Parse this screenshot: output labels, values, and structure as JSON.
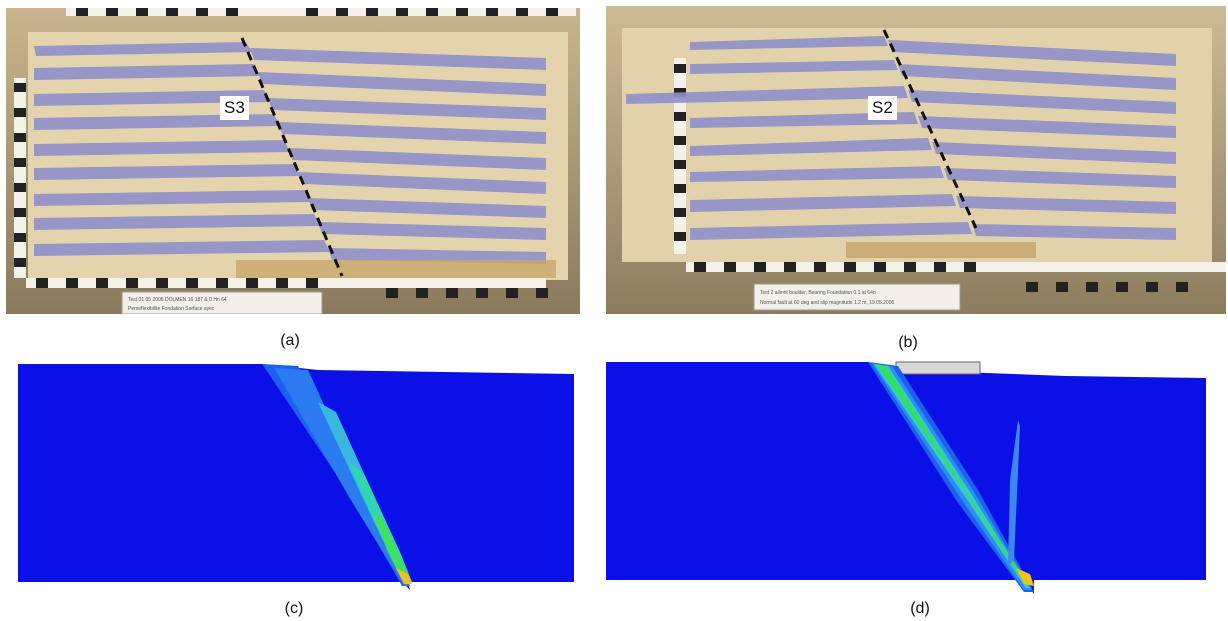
{
  "figure": {
    "panels": [
      {
        "caption": "(a)",
        "kind": "photo",
        "fault_label": "S3",
        "stamp_lines": [
          "Test 01 05 2006 DOLMEN 16 187 & 0 Hn 64",
          "Pemeflexibilite Fondation Surface ayec"
        ]
      },
      {
        "caption": "(b)",
        "kind": "photo",
        "fault_label": "S2",
        "stamp_lines": [
          "Test 2 ailinnt boulder, Bearing Foundation 0.1 at 64n",
          "Normal fault at 60 deg and slip magnitude 1.2 m, 19.05.2006"
        ]
      },
      {
        "caption": "(c)",
        "kind": "numerical-model"
      },
      {
        "caption": "(d)",
        "kind": "numerical-model"
      }
    ],
    "colors": {
      "model_blue": "#0a10e6",
      "sand": "#e2d1a8",
      "stripe": "#8e8fc8",
      "shear_light": "#2a7af0",
      "shear_mid": "#38c8d8",
      "shear_high": "#30e060",
      "shear_peak": "#f0c020"
    }
  }
}
